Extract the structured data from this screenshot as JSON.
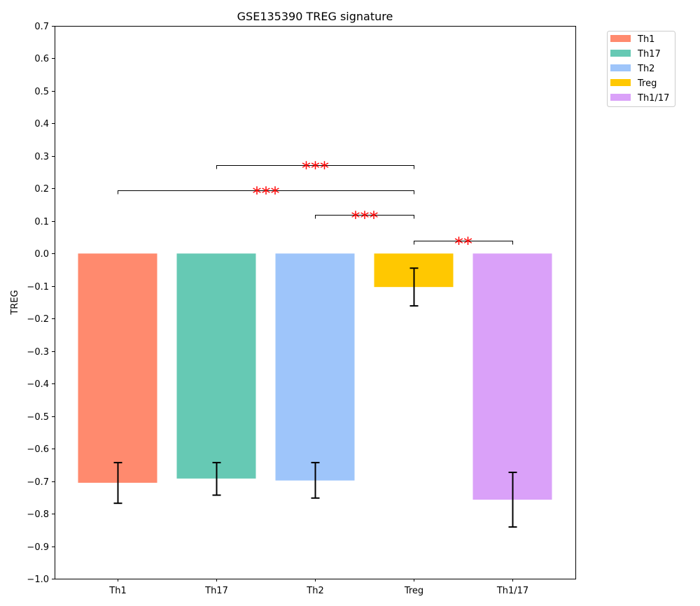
{
  "chart_data": {
    "type": "bar",
    "title": "GSE135390 TREG signature",
    "xlabel": "",
    "ylabel": "TREG",
    "ylim": [
      -1.0,
      0.7
    ],
    "yticks": [
      -1.0,
      -0.9,
      -0.8,
      -0.7,
      -0.6,
      -0.5,
      -0.4,
      -0.3,
      -0.2,
      -0.1,
      0.0,
      0.1,
      0.2,
      0.3,
      0.4,
      0.5,
      0.6,
      0.7
    ],
    "ytick_labels": [
      "−1.0",
      "−0.9",
      "−0.8",
      "−0.7",
      "−0.6",
      "−0.5",
      "−0.4",
      "−0.3",
      "−0.2",
      "−0.1",
      "0.0",
      "0.1",
      "0.2",
      "0.3",
      "0.4",
      "0.5",
      "0.6",
      "0.7"
    ],
    "categories": [
      "Th1",
      "Th17",
      "Th2",
      "Treg",
      "Th1/17"
    ],
    "values": [
      -0.705,
      -0.692,
      -0.698,
      -0.103,
      -0.757
    ],
    "error_low": [
      -0.768,
      -0.743,
      -0.752,
      -0.161,
      -0.841
    ],
    "error_high": [
      -0.643,
      -0.643,
      -0.643,
      -0.045,
      -0.673
    ],
    "colors": [
      "#ff8a6e",
      "#66c9b4",
      "#9ec5fa",
      "#ffc801",
      "#daa1f9"
    ],
    "legend": {
      "placement": "outside-top-right",
      "entries": [
        "Th1",
        "Th17",
        "Th2",
        "Treg",
        "Th1/17"
      ]
    },
    "grid": false,
    "significance": [
      {
        "from": 1,
        "to": 3,
        "y": 0.272,
        "label": "***"
      },
      {
        "from": 0,
        "to": 3,
        "y": 0.195,
        "label": "***"
      },
      {
        "from": 2,
        "to": 3,
        "y": 0.118,
        "label": "***"
      },
      {
        "from": 3,
        "to": 4,
        "y": 0.04,
        "label": "**"
      }
    ],
    "significance_color": "#ff0000"
  }
}
